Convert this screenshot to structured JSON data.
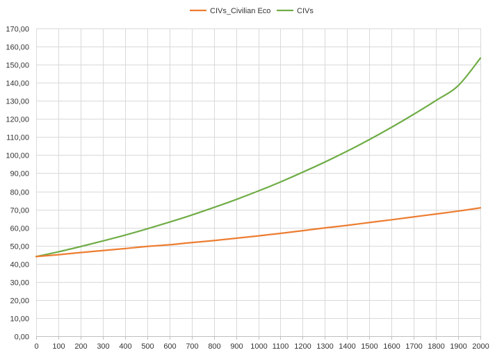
{
  "chart_data": {
    "type": "line",
    "title": "",
    "xlabel": "",
    "ylabel": "",
    "xlim": [
      0,
      2000
    ],
    "ylim": [
      0,
      170
    ],
    "x_ticks": [
      0,
      100,
      200,
      300,
      400,
      500,
      600,
      700,
      800,
      900,
      1000,
      1100,
      1200,
      1300,
      1400,
      1500,
      1600,
      1700,
      1800,
      1900,
      2000
    ],
    "x_tick_labels": [
      "0",
      "100",
      "200",
      "300",
      "400",
      "500",
      "600",
      "700",
      "800",
      "900",
      "1000",
      "1100",
      "1200",
      "1300",
      "1400",
      "1500",
      "1600",
      "1700",
      "1800",
      "1900",
      "2000"
    ],
    "y_ticks": [
      0,
      10,
      20,
      30,
      40,
      50,
      60,
      70,
      80,
      90,
      100,
      110,
      120,
      130,
      140,
      150,
      160,
      170
    ],
    "y_tick_labels": [
      "0,00",
      "10,00",
      "20,00",
      "30,00",
      "40,00",
      "50,00",
      "60,00",
      "70,00",
      "80,00",
      "90,00",
      "100,00",
      "110,00",
      "120,00",
      "130,00",
      "140,00",
      "150,00",
      "160,00",
      "170,00"
    ],
    "grid": true,
    "legend_position": "top-center",
    "x": [
      0,
      100,
      200,
      300,
      400,
      500,
      600,
      700,
      800,
      900,
      1000,
      1100,
      1200,
      1300,
      1400,
      1500,
      1600,
      1700,
      1800,
      1900,
      2000
    ],
    "series": [
      {
        "name": "CIVs_Civilian Eco",
        "color": "#ED7D31",
        "values": [
          44.0,
          45.0,
          46.2,
          47.3,
          48.4,
          49.6,
          50.5,
          51.7,
          52.8,
          54.1,
          55.4,
          56.8,
          58.3,
          59.8,
          61.2,
          62.8,
          64.3,
          65.9,
          67.5,
          69.1,
          70.9
        ]
      },
      {
        "name": "CIVs",
        "color": "#70AD47",
        "values": [
          44.0,
          46.6,
          49.5,
          52.6,
          55.8,
          59.3,
          63.0,
          66.9,
          71.1,
          75.5,
          80.2,
          85.2,
          90.6,
          96.2,
          102.2,
          108.6,
          115.4,
          122.6,
          130.2,
          138.4,
          153.6
        ]
      }
    ]
  }
}
